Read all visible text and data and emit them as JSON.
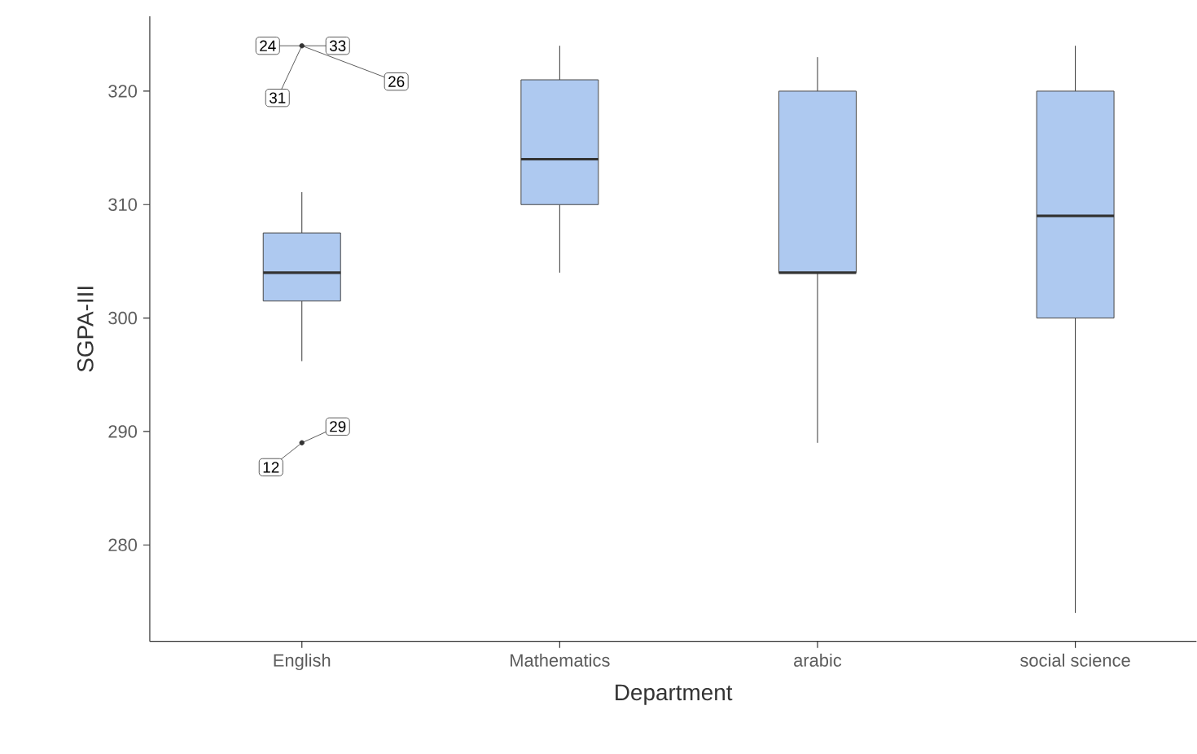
{
  "chart_data": {
    "type": "box",
    "xlabel": "Department",
    "ylabel": "SGPA-III",
    "categories": [
      "English",
      "Mathematics",
      "arabic",
      "social science"
    ],
    "color": "#aec9f0",
    "boxes": [
      {
        "low": 296.2,
        "q1": 301.5,
        "median": 304,
        "q3": 307.5,
        "high": 311.1,
        "outliers": [
          324,
          289
        ]
      },
      {
        "low": 304,
        "q1": 310,
        "median": 314,
        "q3": 321,
        "high": 324
      },
      {
        "low": 289,
        "q1": 304,
        "median": 304,
        "q3": 320,
        "high": 323
      },
      {
        "low": 274,
        "q1": 300,
        "median": 309,
        "q3": 320,
        "high": 324
      }
    ],
    "ylim": [
      271.5,
      326.6
    ],
    "yticks": [
      280,
      290,
      300,
      310,
      320
    ],
    "grid": false,
    "annotations": [
      "24",
      "33",
      "31",
      "26",
      "12",
      "29"
    ]
  }
}
